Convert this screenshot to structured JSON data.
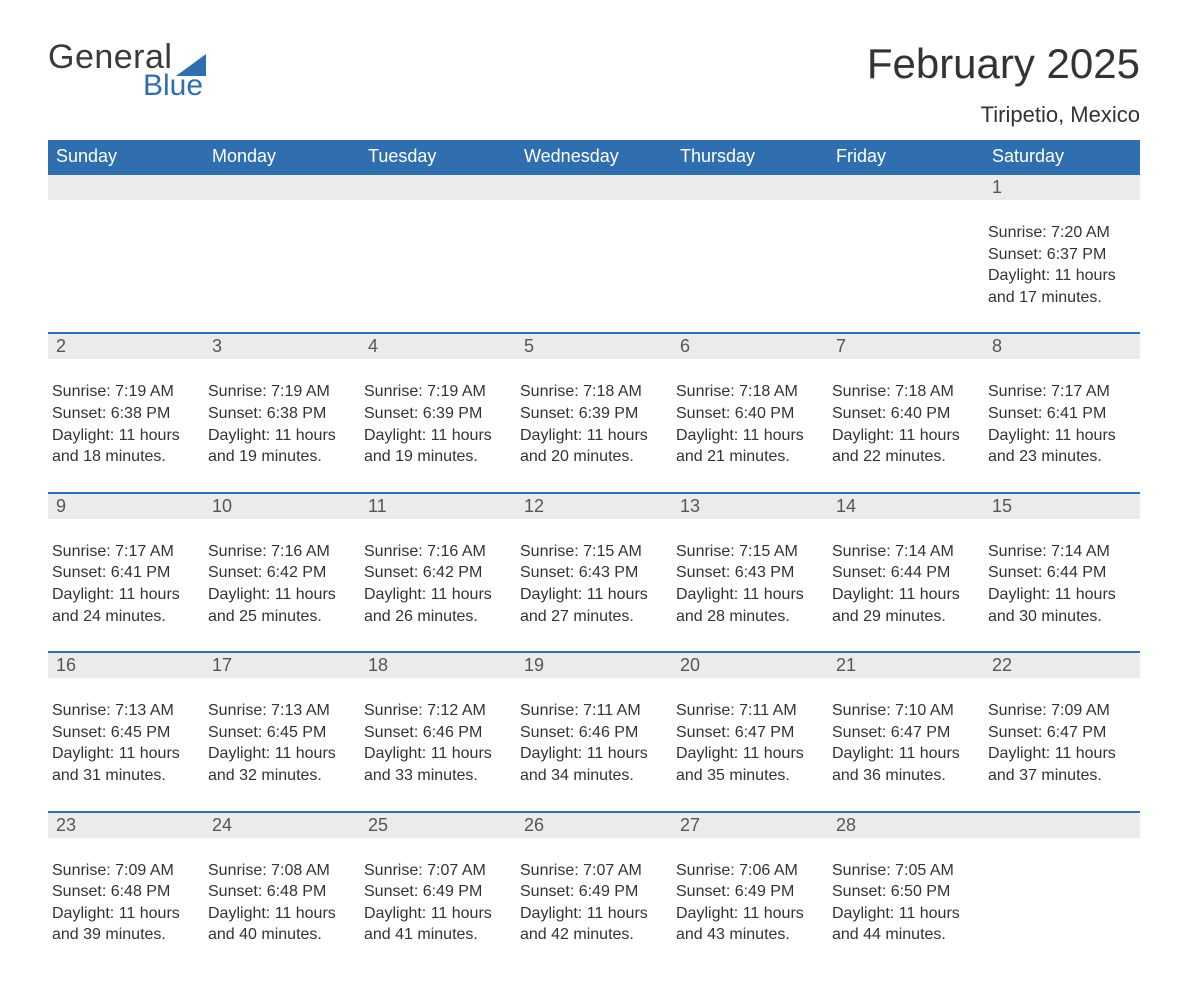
{
  "logo": {
    "word1": "General",
    "word2": "Blue",
    "word1_color": "#3a3a3a",
    "word2_color": "#2f6fb0",
    "flag_color": "#2f6fb0"
  },
  "header": {
    "month_title": "February 2025",
    "location": "Tiripetio, Mexico"
  },
  "colors": {
    "header_bar": "#2f6fb0",
    "band_bg": "#ebebeb",
    "band_border": "#2f6fb0",
    "text": "#333333",
    "dow_text": "#ffffff"
  },
  "days_of_week": [
    "Sunday",
    "Monday",
    "Tuesday",
    "Wednesday",
    "Thursday",
    "Friday",
    "Saturday"
  ],
  "weeks": [
    [
      {
        "num": "",
        "lines": []
      },
      {
        "num": "",
        "lines": []
      },
      {
        "num": "",
        "lines": []
      },
      {
        "num": "",
        "lines": []
      },
      {
        "num": "",
        "lines": []
      },
      {
        "num": "",
        "lines": []
      },
      {
        "num": "1",
        "lines": [
          "Sunrise: 7:20 AM",
          "Sunset: 6:37 PM",
          "Daylight: 11 hours and 17 minutes."
        ]
      }
    ],
    [
      {
        "num": "2",
        "lines": [
          "Sunrise: 7:19 AM",
          "Sunset: 6:38 PM",
          "Daylight: 11 hours and 18 minutes."
        ]
      },
      {
        "num": "3",
        "lines": [
          "Sunrise: 7:19 AM",
          "Sunset: 6:38 PM",
          "Daylight: 11 hours and 19 minutes."
        ]
      },
      {
        "num": "4",
        "lines": [
          "Sunrise: 7:19 AM",
          "Sunset: 6:39 PM",
          "Daylight: 11 hours and 19 minutes."
        ]
      },
      {
        "num": "5",
        "lines": [
          "Sunrise: 7:18 AM",
          "Sunset: 6:39 PM",
          "Daylight: 11 hours and 20 minutes."
        ]
      },
      {
        "num": "6",
        "lines": [
          "Sunrise: 7:18 AM",
          "Sunset: 6:40 PM",
          "Daylight: 11 hours and 21 minutes."
        ]
      },
      {
        "num": "7",
        "lines": [
          "Sunrise: 7:18 AM",
          "Sunset: 6:40 PM",
          "Daylight: 11 hours and 22 minutes."
        ]
      },
      {
        "num": "8",
        "lines": [
          "Sunrise: 7:17 AM",
          "Sunset: 6:41 PM",
          "Daylight: 11 hours and 23 minutes."
        ]
      }
    ],
    [
      {
        "num": "9",
        "lines": [
          "Sunrise: 7:17 AM",
          "Sunset: 6:41 PM",
          "Daylight: 11 hours and 24 minutes."
        ]
      },
      {
        "num": "10",
        "lines": [
          "Sunrise: 7:16 AM",
          "Sunset: 6:42 PM",
          "Daylight: 11 hours and 25 minutes."
        ]
      },
      {
        "num": "11",
        "lines": [
          "Sunrise: 7:16 AM",
          "Sunset: 6:42 PM",
          "Daylight: 11 hours and 26 minutes."
        ]
      },
      {
        "num": "12",
        "lines": [
          "Sunrise: 7:15 AM",
          "Sunset: 6:43 PM",
          "Daylight: 11 hours and 27 minutes."
        ]
      },
      {
        "num": "13",
        "lines": [
          "Sunrise: 7:15 AM",
          "Sunset: 6:43 PM",
          "Daylight: 11 hours and 28 minutes."
        ]
      },
      {
        "num": "14",
        "lines": [
          "Sunrise: 7:14 AM",
          "Sunset: 6:44 PM",
          "Daylight: 11 hours and 29 minutes."
        ]
      },
      {
        "num": "15",
        "lines": [
          "Sunrise: 7:14 AM",
          "Sunset: 6:44 PM",
          "Daylight: 11 hours and 30 minutes."
        ]
      }
    ],
    [
      {
        "num": "16",
        "lines": [
          "Sunrise: 7:13 AM",
          "Sunset: 6:45 PM",
          "Daylight: 11 hours and 31 minutes."
        ]
      },
      {
        "num": "17",
        "lines": [
          "Sunrise: 7:13 AM",
          "Sunset: 6:45 PM",
          "Daylight: 11 hours and 32 minutes."
        ]
      },
      {
        "num": "18",
        "lines": [
          "Sunrise: 7:12 AM",
          "Sunset: 6:46 PM",
          "Daylight: 11 hours and 33 minutes."
        ]
      },
      {
        "num": "19",
        "lines": [
          "Sunrise: 7:11 AM",
          "Sunset: 6:46 PM",
          "Daylight: 11 hours and 34 minutes."
        ]
      },
      {
        "num": "20",
        "lines": [
          "Sunrise: 7:11 AM",
          "Sunset: 6:47 PM",
          "Daylight: 11 hours and 35 minutes."
        ]
      },
      {
        "num": "21",
        "lines": [
          "Sunrise: 7:10 AM",
          "Sunset: 6:47 PM",
          "Daylight: 11 hours and 36 minutes."
        ]
      },
      {
        "num": "22",
        "lines": [
          "Sunrise: 7:09 AM",
          "Sunset: 6:47 PM",
          "Daylight: 11 hours and 37 minutes."
        ]
      }
    ],
    [
      {
        "num": "23",
        "lines": [
          "Sunrise: 7:09 AM",
          "Sunset: 6:48 PM",
          "Daylight: 11 hours and 39 minutes."
        ]
      },
      {
        "num": "24",
        "lines": [
          "Sunrise: 7:08 AM",
          "Sunset: 6:48 PM",
          "Daylight: 11 hours and 40 minutes."
        ]
      },
      {
        "num": "25",
        "lines": [
          "Sunrise: 7:07 AM",
          "Sunset: 6:49 PM",
          "Daylight: 11 hours and 41 minutes."
        ]
      },
      {
        "num": "26",
        "lines": [
          "Sunrise: 7:07 AM",
          "Sunset: 6:49 PM",
          "Daylight: 11 hours and 42 minutes."
        ]
      },
      {
        "num": "27",
        "lines": [
          "Sunrise: 7:06 AM",
          "Sunset: 6:49 PM",
          "Daylight: 11 hours and 43 minutes."
        ]
      },
      {
        "num": "28",
        "lines": [
          "Sunrise: 7:05 AM",
          "Sunset: 6:50 PM",
          "Daylight: 11 hours and 44 minutes."
        ]
      },
      {
        "num": "",
        "lines": []
      }
    ]
  ]
}
